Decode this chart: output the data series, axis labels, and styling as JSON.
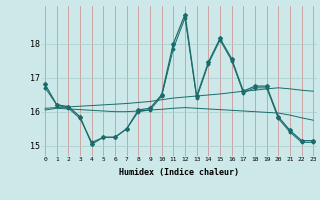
{
  "xlabel": "Humidex (Indice chaleur)",
  "bg_color": "#cce8e8",
  "line_color": "#1a6b6b",
  "grid_color_v": "#cc8888",
  "grid_color_h": "#aacccc",
  "xmin": 0,
  "xmax": 23,
  "ymin": 14.7,
  "ymax": 19.1,
  "yticks": [
    15,
    16,
    17,
    18
  ],
  "series_spiky": {
    "x": [
      0,
      1,
      2,
      3,
      4,
      5,
      6,
      7,
      8,
      9,
      10,
      11,
      12,
      13,
      14,
      15,
      16,
      17,
      18,
      19,
      20,
      21,
      22,
      23
    ],
    "y": [
      16.8,
      16.2,
      16.15,
      15.85,
      15.05,
      15.25,
      15.25,
      15.5,
      16.05,
      16.1,
      16.5,
      18.0,
      18.85,
      16.45,
      17.45,
      18.15,
      17.55,
      16.6,
      16.75,
      16.75,
      15.85,
      15.45,
      15.15,
      15.15
    ]
  },
  "series_spiky2": {
    "x": [
      0,
      1,
      2,
      3,
      4,
      5,
      6,
      7,
      8,
      9,
      10,
      11,
      12,
      13,
      14,
      15,
      16,
      17,
      18,
      19,
      20,
      21,
      22,
      23
    ],
    "y": [
      16.7,
      16.2,
      16.1,
      15.8,
      15.1,
      15.25,
      15.25,
      15.5,
      16.0,
      16.05,
      16.45,
      17.85,
      18.75,
      16.4,
      17.4,
      18.1,
      17.5,
      16.55,
      16.7,
      16.7,
      15.8,
      15.4,
      15.1,
      15.1
    ]
  },
  "series_trend": {
    "x": [
      0,
      1,
      2,
      3,
      4,
      5,
      6,
      7,
      8,
      9,
      10,
      11,
      12,
      13,
      14,
      15,
      16,
      17,
      18,
      19,
      20,
      21,
      22,
      23
    ],
    "y": [
      16.1,
      16.12,
      16.14,
      16.16,
      16.18,
      16.2,
      16.22,
      16.24,
      16.27,
      16.3,
      16.35,
      16.4,
      16.43,
      16.46,
      16.49,
      16.52,
      16.56,
      16.6,
      16.63,
      16.67,
      16.7,
      16.67,
      16.63,
      16.6
    ]
  },
  "series_flat": {
    "x": [
      0,
      1,
      2,
      3,
      4,
      5,
      6,
      7,
      8,
      9,
      10,
      11,
      12,
      13,
      14,
      15,
      16,
      17,
      18,
      19,
      20,
      21,
      22,
      23
    ],
    "y": [
      16.05,
      16.1,
      16.08,
      16.06,
      16.04,
      16.02,
      16.0,
      16.0,
      16.02,
      16.05,
      16.07,
      16.1,
      16.12,
      16.1,
      16.08,
      16.06,
      16.04,
      16.02,
      16.0,
      15.98,
      15.96,
      15.9,
      15.82,
      15.75
    ]
  }
}
